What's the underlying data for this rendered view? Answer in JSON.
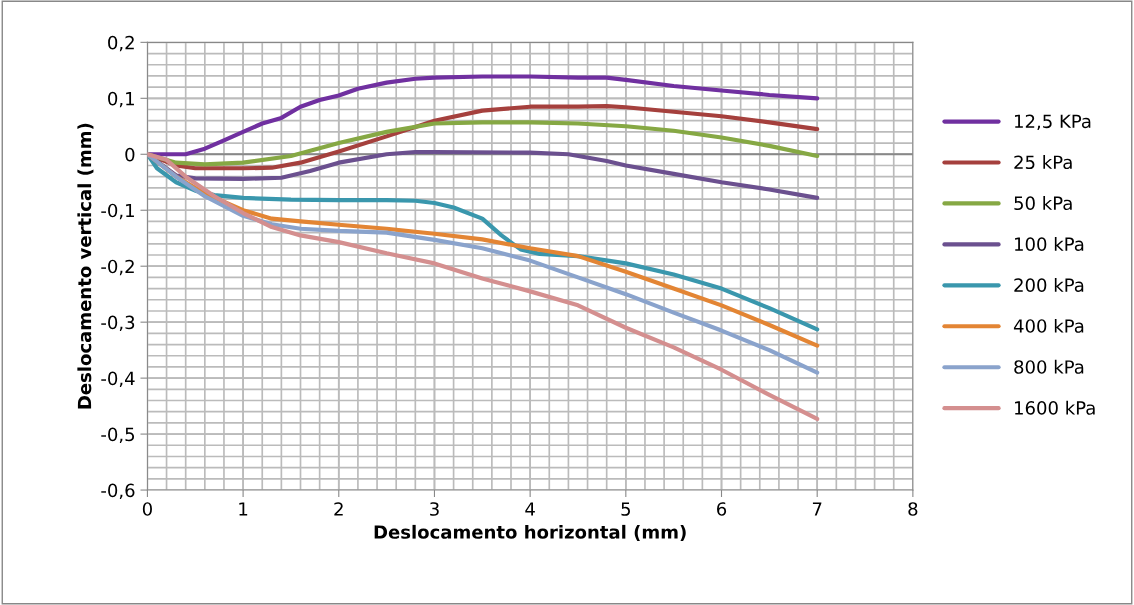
{
  "chart_data": {
    "type": "line",
    "xlabel": "Deslocamento horizontal (mm)",
    "ylabel": "Deslocamento vertical (mm)",
    "xlim": [
      0,
      8
    ],
    "xticks": [
      0,
      1,
      2,
      3,
      4,
      5,
      6,
      7,
      8
    ],
    "ylim": [
      -0.6,
      0.2
    ],
    "yticks": [
      {
        "value": -0.6,
        "label": "-0,6"
      },
      {
        "value": -0.5,
        "label": "-0,5"
      },
      {
        "value": -0.4,
        "label": "-0,4"
      },
      {
        "value": -0.3,
        "label": "-0,3"
      },
      {
        "value": -0.2,
        "label": "-0,2"
      },
      {
        "value": -0.1,
        "label": "-0,1"
      },
      {
        "value": 0,
        "label": "0"
      },
      {
        "value": 0.1,
        "label": "0,1"
      },
      {
        "value": 0.2,
        "label": "0,2"
      }
    ],
    "grid": true,
    "legend": "right",
    "marker": "none",
    "line_style": "solid",
    "series": [
      {
        "name": "12,5 KPa",
        "color": "#7030a0",
        "x": [
          0,
          0.4,
          0.6,
          0.8,
          1,
          1.2,
          1.4,
          1.6,
          1.8,
          2,
          2.2,
          2.5,
          2.8,
          3,
          3.5,
          4,
          4.5,
          4.8,
          5,
          5.5,
          6,
          6.5,
          7
        ],
        "values": [
          0,
          0,
          0.01,
          0.025,
          0.04,
          0.055,
          0.065,
          0.085,
          0.097,
          0.105,
          0.117,
          0.128,
          0.135,
          0.137,
          0.139,
          0.139,
          0.137,
          0.137,
          0.133,
          0.122,
          0.114,
          0.106,
          0.1
        ]
      },
      {
        "name": "25 kPa",
        "color": "#a5403d",
        "x": [
          0,
          0.3,
          0.5,
          1,
          1.3,
          1.6,
          2,
          2.5,
          3,
          3.5,
          4,
          4.5,
          4.8,
          5,
          5.5,
          6,
          6.5,
          7
        ],
        "values": [
          0,
          -0.02,
          -0.025,
          -0.025,
          -0.024,
          -0.015,
          0.005,
          0.032,
          0.06,
          0.078,
          0.085,
          0.085,
          0.086,
          0.084,
          0.076,
          0.068,
          0.057,
          0.045
        ]
      },
      {
        "name": "50 kPa",
        "color": "#86a844",
        "x": [
          0,
          0.3,
          0.6,
          1,
          1.5,
          2,
          2.5,
          3,
          3.5,
          4,
          4.5,
          5,
          5.5,
          6,
          6.5,
          7
        ],
        "values": [
          0,
          -0.015,
          -0.018,
          -0.015,
          -0.003,
          0.02,
          0.04,
          0.055,
          0.057,
          0.057,
          0.055,
          0.05,
          0.042,
          0.03,
          0.015,
          -0.003
        ]
      },
      {
        "name": "100 kPa",
        "color": "#6b508f",
        "x": [
          0,
          0.3,
          0.5,
          1,
          1.4,
          1.7,
          2,
          2.5,
          2.8,
          3,
          4,
          4.4,
          4.8,
          5,
          5.5,
          6,
          6.5,
          7
        ],
        "values": [
          0,
          -0.038,
          -0.043,
          -0.044,
          -0.042,
          -0.03,
          -0.015,
          0,
          0.004,
          0.004,
          0.003,
          0,
          -0.012,
          -0.02,
          -0.035,
          -0.05,
          -0.063,
          -0.078
        ]
      },
      {
        "name": "200 kPa",
        "color": "#3a97ad",
        "x": [
          0,
          0.1,
          0.3,
          0.5,
          0.7,
          1,
          1.5,
          2,
          2.5,
          2.8,
          3,
          3.2,
          3.5,
          3.7,
          3.9,
          4.1,
          4.5,
          5,
          5.5,
          6,
          6.5,
          7
        ],
        "values": [
          0,
          -0.025,
          -0.05,
          -0.065,
          -0.073,
          -0.078,
          -0.081,
          -0.082,
          -0.082,
          -0.083,
          -0.087,
          -0.095,
          -0.115,
          -0.145,
          -0.17,
          -0.178,
          -0.182,
          -0.195,
          -0.215,
          -0.24,
          -0.275,
          -0.313
        ]
      },
      {
        "name": "400 kPa",
        "color": "#e38534",
        "x": [
          0,
          0.3,
          0.6,
          1,
          1.3,
          1.6,
          2,
          2.5,
          3,
          3.5,
          4,
          4.5,
          5,
          5.5,
          6,
          6.5,
          7
        ],
        "values": [
          0,
          -0.04,
          -0.07,
          -0.1,
          -0.115,
          -0.12,
          -0.126,
          -0.133,
          -0.142,
          -0.152,
          -0.168,
          -0.182,
          -0.21,
          -0.24,
          -0.27,
          -0.305,
          -0.342
        ]
      },
      {
        "name": "800 kPa",
        "color": "#8aa3cc",
        "x": [
          0,
          0.3,
          0.6,
          1,
          1.3,
          1.6,
          2,
          2.5,
          3,
          3.5,
          4,
          4.5,
          5,
          5.5,
          6,
          6.5,
          7
        ],
        "values": [
          0,
          -0.04,
          -0.075,
          -0.11,
          -0.125,
          -0.133,
          -0.137,
          -0.14,
          -0.153,
          -0.168,
          -0.19,
          -0.22,
          -0.25,
          -0.283,
          -0.315,
          -0.35,
          -0.39
        ]
      },
      {
        "name": "1600 kPa",
        "color": "#d48f8f",
        "x": [
          0,
          0.2,
          0.4,
          0.7,
          1,
          1.3,
          1.6,
          2,
          2.5,
          3,
          3.5,
          4,
          4.5,
          5,
          5.5,
          6,
          6.5,
          7
        ],
        "values": [
          0,
          -0.01,
          -0.04,
          -0.075,
          -0.105,
          -0.13,
          -0.145,
          -0.157,
          -0.177,
          -0.195,
          -0.222,
          -0.245,
          -0.27,
          -0.31,
          -0.345,
          -0.385,
          -0.43,
          -0.473
        ]
      }
    ]
  }
}
